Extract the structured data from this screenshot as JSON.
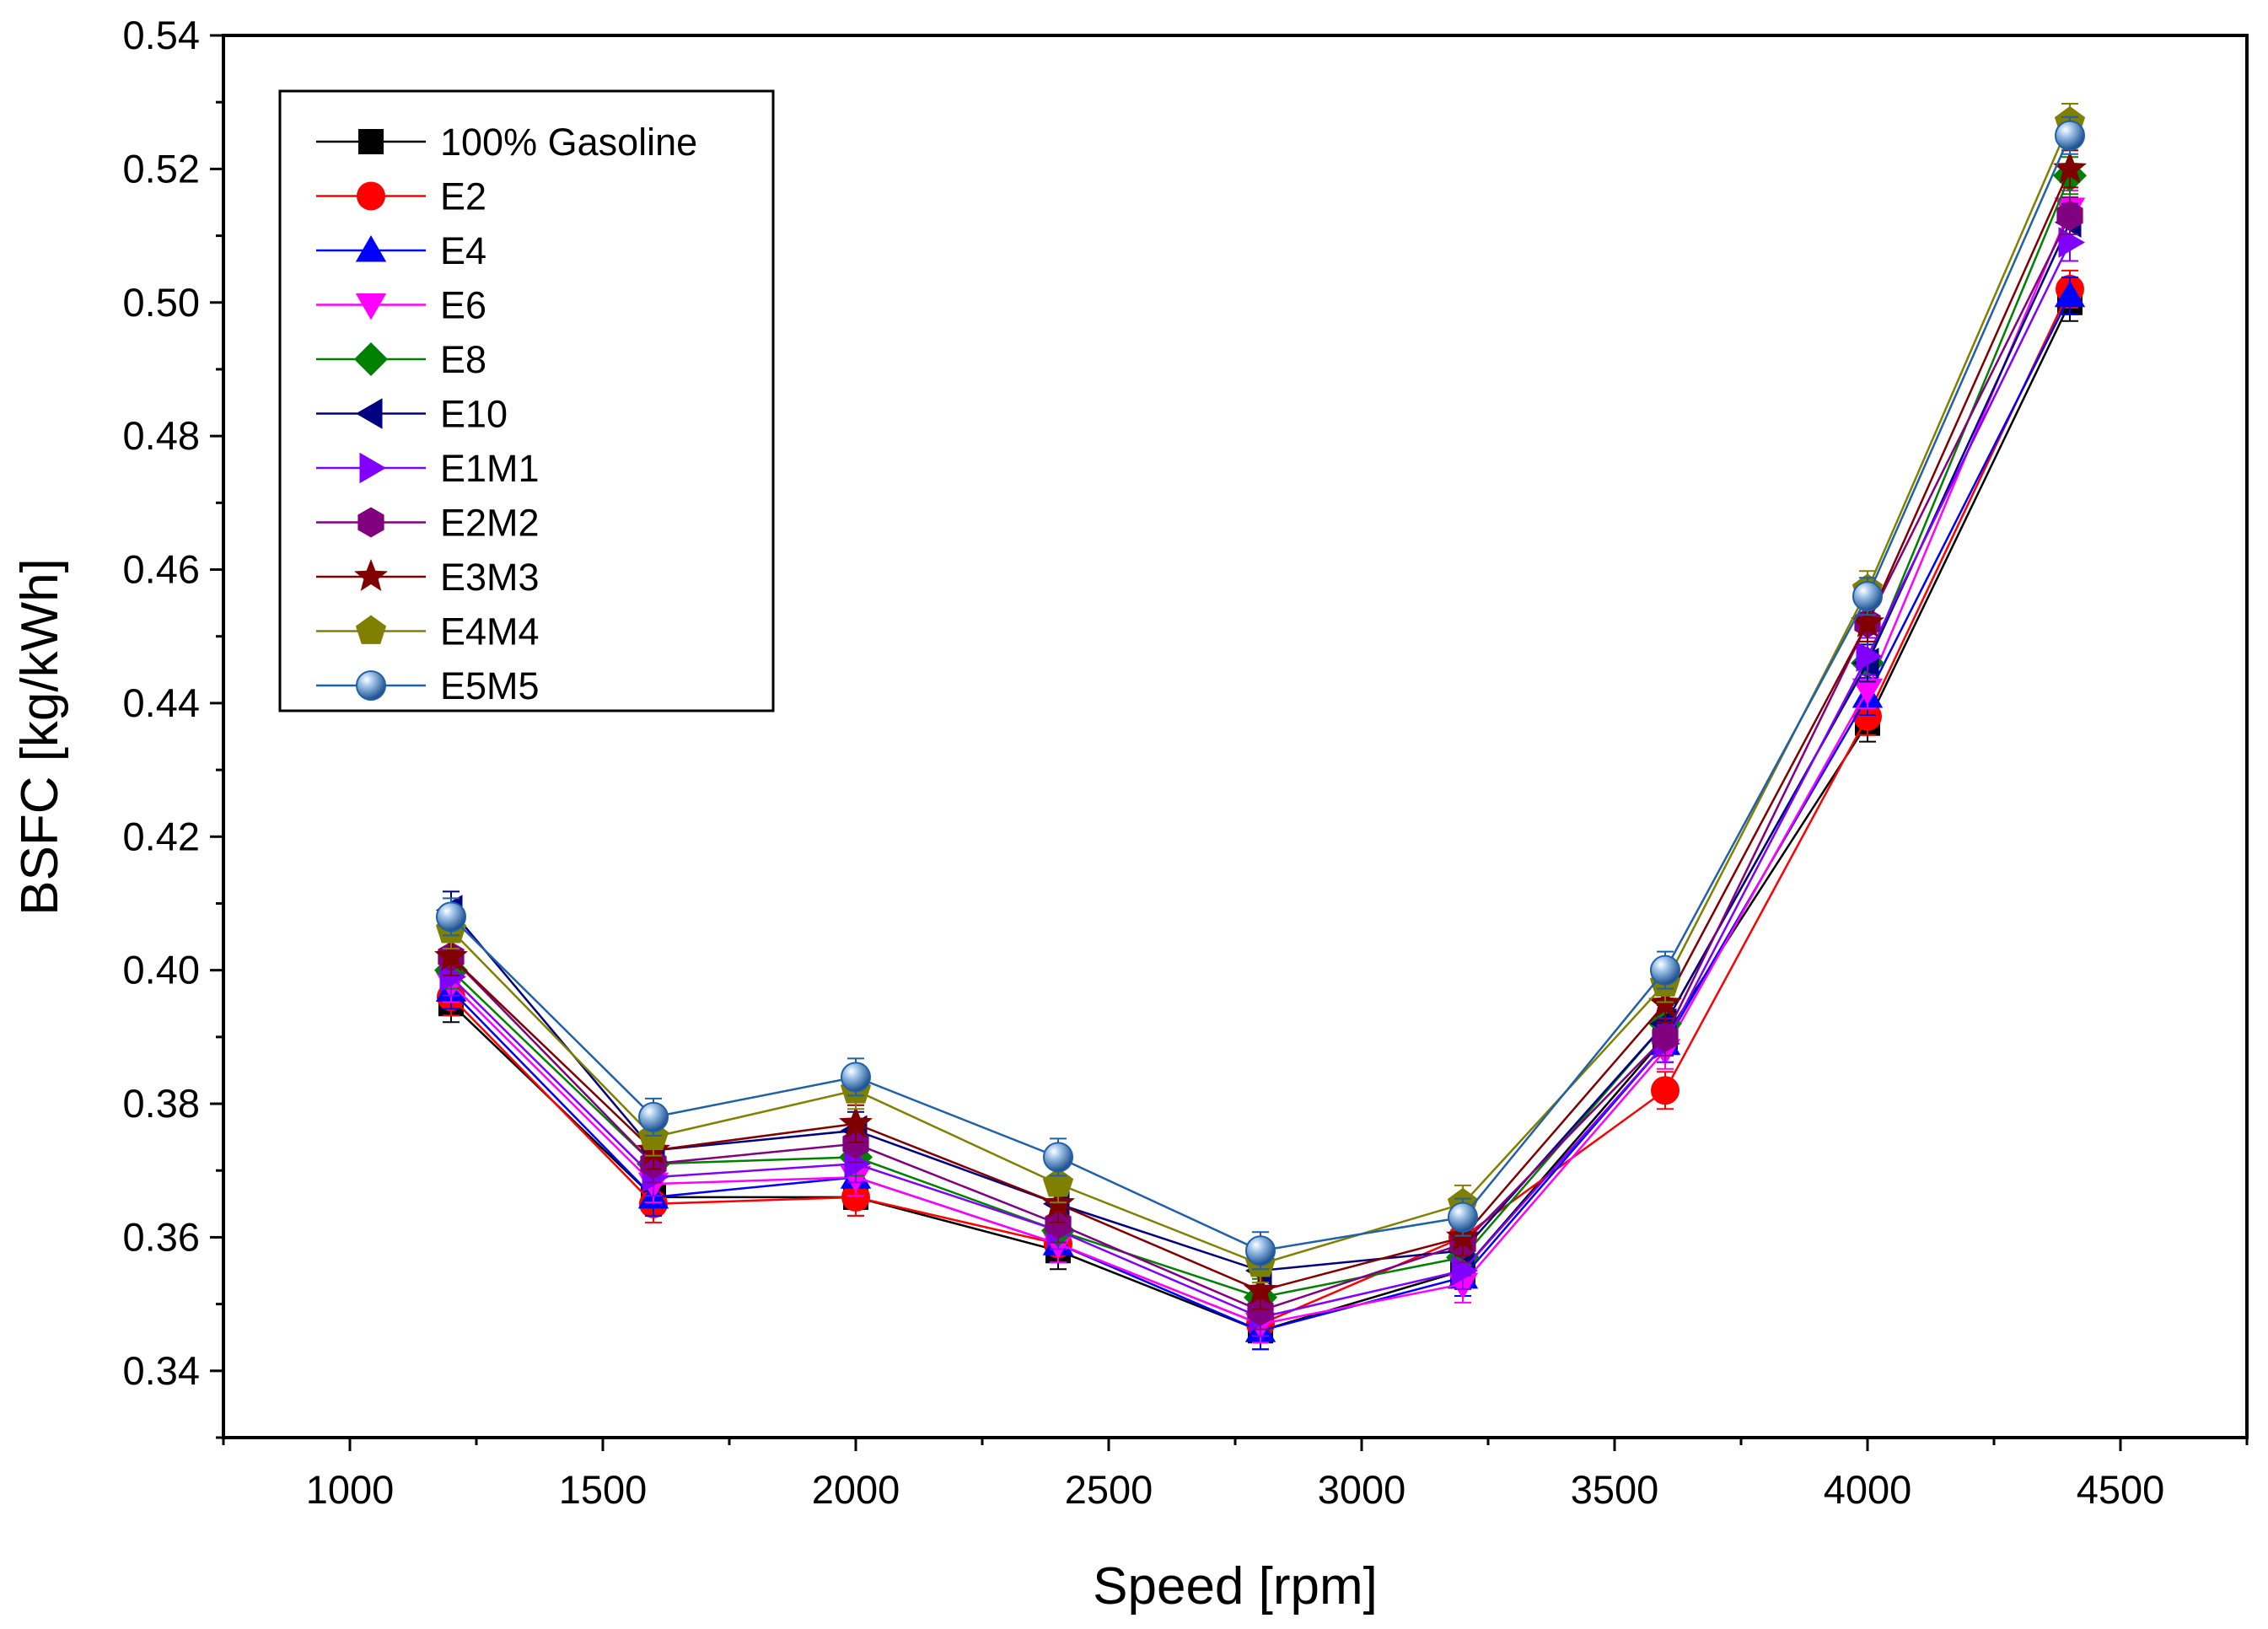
{
  "chart_data": {
    "type": "line",
    "title": "",
    "xlabel": "Speed [rpm]",
    "ylabel": "BSFC [kg/kWh]",
    "xlim": [
      750,
      4750
    ],
    "ylim": [
      0.33,
      0.54
    ],
    "x_ticks": [
      1000,
      1500,
      2000,
      2500,
      3000,
      3500,
      4000,
      4500
    ],
    "x_tick_labels": [
      "1000",
      "1500",
      "2000",
      "2500",
      "3000",
      "3500",
      "4000",
      "4500"
    ],
    "y_ticks": [
      0.34,
      0.36,
      0.38,
      0.4,
      0.42,
      0.44,
      0.46,
      0.48,
      0.5,
      0.52,
      0.54
    ],
    "y_tick_labels": [
      "0.34",
      "0.36",
      "0.38",
      "0.40",
      "0.42",
      "0.44",
      "0.46",
      "0.48",
      "0.50",
      "0.52",
      "0.54"
    ],
    "grid": false,
    "legend_position": "top-left",
    "x": [
      1200,
      1600,
      2000,
      2400,
      2800,
      3200,
      3600,
      4000,
      4400
    ],
    "series": [
      {
        "name": "100% Gasoline",
        "color": "#000000",
        "marker": "square",
        "values": [
          0.395,
          0.366,
          0.366,
          0.358,
          0.346,
          0.355,
          0.39,
          0.437,
          0.5
        ]
      },
      {
        "name": "E2",
        "color": "#ff0000",
        "marker": "circle",
        "values": [
          0.396,
          0.365,
          0.366,
          0.359,
          0.347,
          0.36,
          0.382,
          0.438,
          0.502
        ]
      },
      {
        "name": "E4",
        "color": "#0000ff",
        "marker": "triangle-up",
        "values": [
          0.397,
          0.366,
          0.369,
          0.359,
          0.346,
          0.354,
          0.389,
          0.441,
          0.501
        ]
      },
      {
        "name": "E6",
        "color": "#ff00ff",
        "marker": "triangle-down",
        "values": [
          0.398,
          0.368,
          0.369,
          0.359,
          0.347,
          0.353,
          0.388,
          0.442,
          0.514
        ]
      },
      {
        "name": "E8",
        "color": "#008000",
        "marker": "diamond",
        "values": [
          0.4,
          0.371,
          0.372,
          0.361,
          0.351,
          0.357,
          0.392,
          0.446,
          0.519
        ]
      },
      {
        "name": "E10",
        "color": "#000080",
        "marker": "triangle-left",
        "values": [
          0.409,
          0.373,
          0.376,
          0.365,
          0.355,
          0.358,
          0.392,
          0.446,
          0.512
        ]
      },
      {
        "name": "E1M1",
        "color": "#8000ff",
        "marker": "triangle-right",
        "values": [
          0.399,
          0.369,
          0.371,
          0.361,
          0.348,
          0.355,
          0.389,
          0.447,
          0.509
        ]
      },
      {
        "name": "E2M2",
        "color": "#800080",
        "marker": "hexagon",
        "values": [
          0.402,
          0.371,
          0.374,
          0.362,
          0.349,
          0.359,
          0.39,
          0.452,
          0.513
        ]
      },
      {
        "name": "E3M3",
        "color": "#800000",
        "marker": "star",
        "values": [
          0.402,
          0.373,
          0.377,
          0.365,
          0.352,
          0.36,
          0.395,
          0.452,
          0.52
        ]
      },
      {
        "name": "E4M4",
        "color": "#808000",
        "marker": "pentagon",
        "values": [
          0.406,
          0.375,
          0.382,
          0.368,
          0.356,
          0.365,
          0.398,
          0.457,
          0.527
        ]
      },
      {
        "name": "E5M5",
        "color": "#2060a8",
        "marker": "sphere",
        "values": [
          0.408,
          0.378,
          0.384,
          0.372,
          0.358,
          0.363,
          0.4,
          0.456,
          0.525
        ]
      }
    ]
  }
}
